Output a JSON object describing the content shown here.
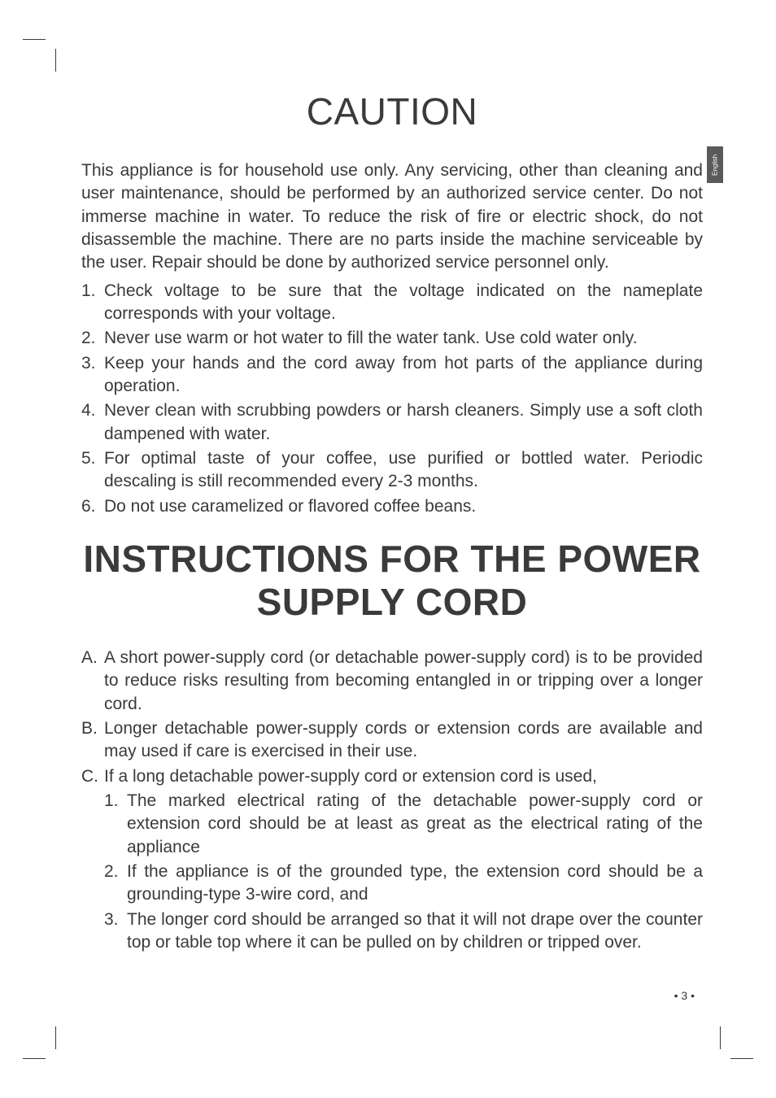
{
  "language_tab": "English",
  "page_number": "• 3 •",
  "section1": {
    "heading": "CAUTION",
    "intro": "This appliance is for household use only. Any servicing, other than cleaning and user maintenance, should be performed by an authorized service center. Do not immerse machine in water. To reduce the risk of fire or electric shock, do not disassemble the machine. There are no parts inside the machine serviceable by the user. Repair should be done by authorized service personnel only.",
    "items": [
      {
        "num": "1.",
        "text": "Check voltage to be sure that the voltage indicated on the nameplate corresponds with your voltage."
      },
      {
        "num": "2.",
        "text": "Never use warm or hot water to fill the water tank. Use cold water only."
      },
      {
        "num": "3.",
        "text": "Keep your hands and the cord away from hot parts of the appliance during operation."
      },
      {
        "num": "4.",
        "text": "Never clean with scrubbing powders or harsh cleaners. Simply use a soft cloth dampened with water."
      },
      {
        "num": "5.",
        "text": "For optimal taste of your coffee, use purified or bottled water. Periodic descaling is still recommended every 2-3 months."
      },
      {
        "num": "6.",
        "text": "Do not use caramelized or flavored coffee beans."
      }
    ]
  },
  "section2": {
    "heading": "INSTRUCTIONS FOR THE POWER SUPPLY CORD",
    "items": [
      {
        "num": "A.",
        "text": "A short power-supply cord (or detachable power-supply cord) is to be provided to reduce risks resulting from becoming entangled in or tripping over a longer cord."
      },
      {
        "num": "B.",
        "text": "Longer detachable power-supply cords or extension cords are available and may used if care is exercised in their use."
      },
      {
        "num": "C.",
        "text": "If a long detachable power-supply cord or extension cord is used,"
      }
    ],
    "subitems": [
      {
        "num": "1.",
        "text": "The marked electrical rating of the detachable power-supply cord or extension cord should be at least as great as the electrical rating of the appliance"
      },
      {
        "num": "2.",
        "text": "If the appliance is of the grounded type, the extension cord should be a grounding-type 3-wire cord, and"
      },
      {
        "num": "3.",
        "text": "The longer cord should be arranged so that it will not drape over the counter top or table top where it can be pulled on by children or tripped over."
      }
    ]
  },
  "styles": {
    "text_color": "#3a3a3a",
    "background_color": "#ffffff",
    "heading_fontsize": 46,
    "body_fontsize": 21,
    "tab_bg": "#5a5a5a"
  }
}
